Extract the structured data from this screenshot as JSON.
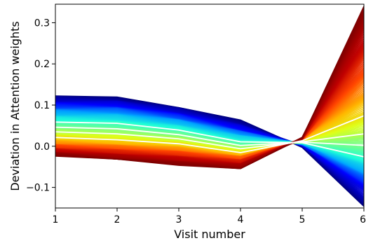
{
  "chart_data": {
    "type": "line",
    "title": "",
    "xlabel": "Visit number",
    "ylabel": "Deviation in Attention weights",
    "x": [
      1,
      2,
      3,
      4,
      5,
      6
    ],
    "xlim": [
      1,
      6
    ],
    "ylim": [
      -0.15,
      0.345
    ],
    "x_ticks": [
      1,
      2,
      3,
      4,
      5,
      6
    ],
    "y_ticks": [
      -0.1,
      0.0,
      0.1,
      0.2,
      0.3
    ],
    "y_tick_labels": [
      "−0.1",
      "0.0",
      "0.1",
      "0.2",
      "0.3"
    ],
    "grid": false,
    "legend": "none",
    "colormap": "jet",
    "colormap_stops": [
      "#00007f",
      "#0000ff",
      "#00a5ff",
      "#20ffd7",
      "#7fff7f",
      "#dfff18",
      "#ffb800",
      "#ff4400",
      "#bf0000",
      "#7f0000"
    ],
    "white_highlights": [
      0.355,
      0.43,
      0.5,
      0.6
    ],
    "series_profiles": [
      {
        "name": "",
        "values": [
          0.122,
          0.119,
          0.095,
          0.062,
          -0.001,
          -0.148
        ]
      },
      {
        "name": "",
        "values": [
          0.1,
          0.097,
          0.075,
          0.04,
          0.004,
          -0.09
        ]
      },
      {
        "name": "",
        "values": [
          0.078,
          0.075,
          0.056,
          0.025,
          0.007,
          -0.055
        ]
      },
      {
        "name": "",
        "values": [
          0.055,
          0.052,
          0.036,
          0.008,
          0.009,
          -0.02
        ]
      },
      {
        "name": "",
        "values": [
          0.035,
          0.03,
          0.018,
          -0.006,
          0.011,
          0.03
        ]
      },
      {
        "name": "",
        "values": [
          0.018,
          0.012,
          0.003,
          -0.018,
          0.014,
          0.085
        ]
      },
      {
        "name": "",
        "values": [
          0.003,
          -0.003,
          -0.012,
          -0.028,
          0.016,
          0.16
        ]
      },
      {
        "name": "",
        "values": [
          -0.01,
          -0.018,
          -0.028,
          -0.04,
          0.018,
          0.245
        ]
      },
      {
        "name": "",
        "values": [
          -0.022,
          -0.033,
          -0.045,
          -0.055,
          0.02,
          0.34
        ]
      }
    ],
    "series_count": 160
  }
}
